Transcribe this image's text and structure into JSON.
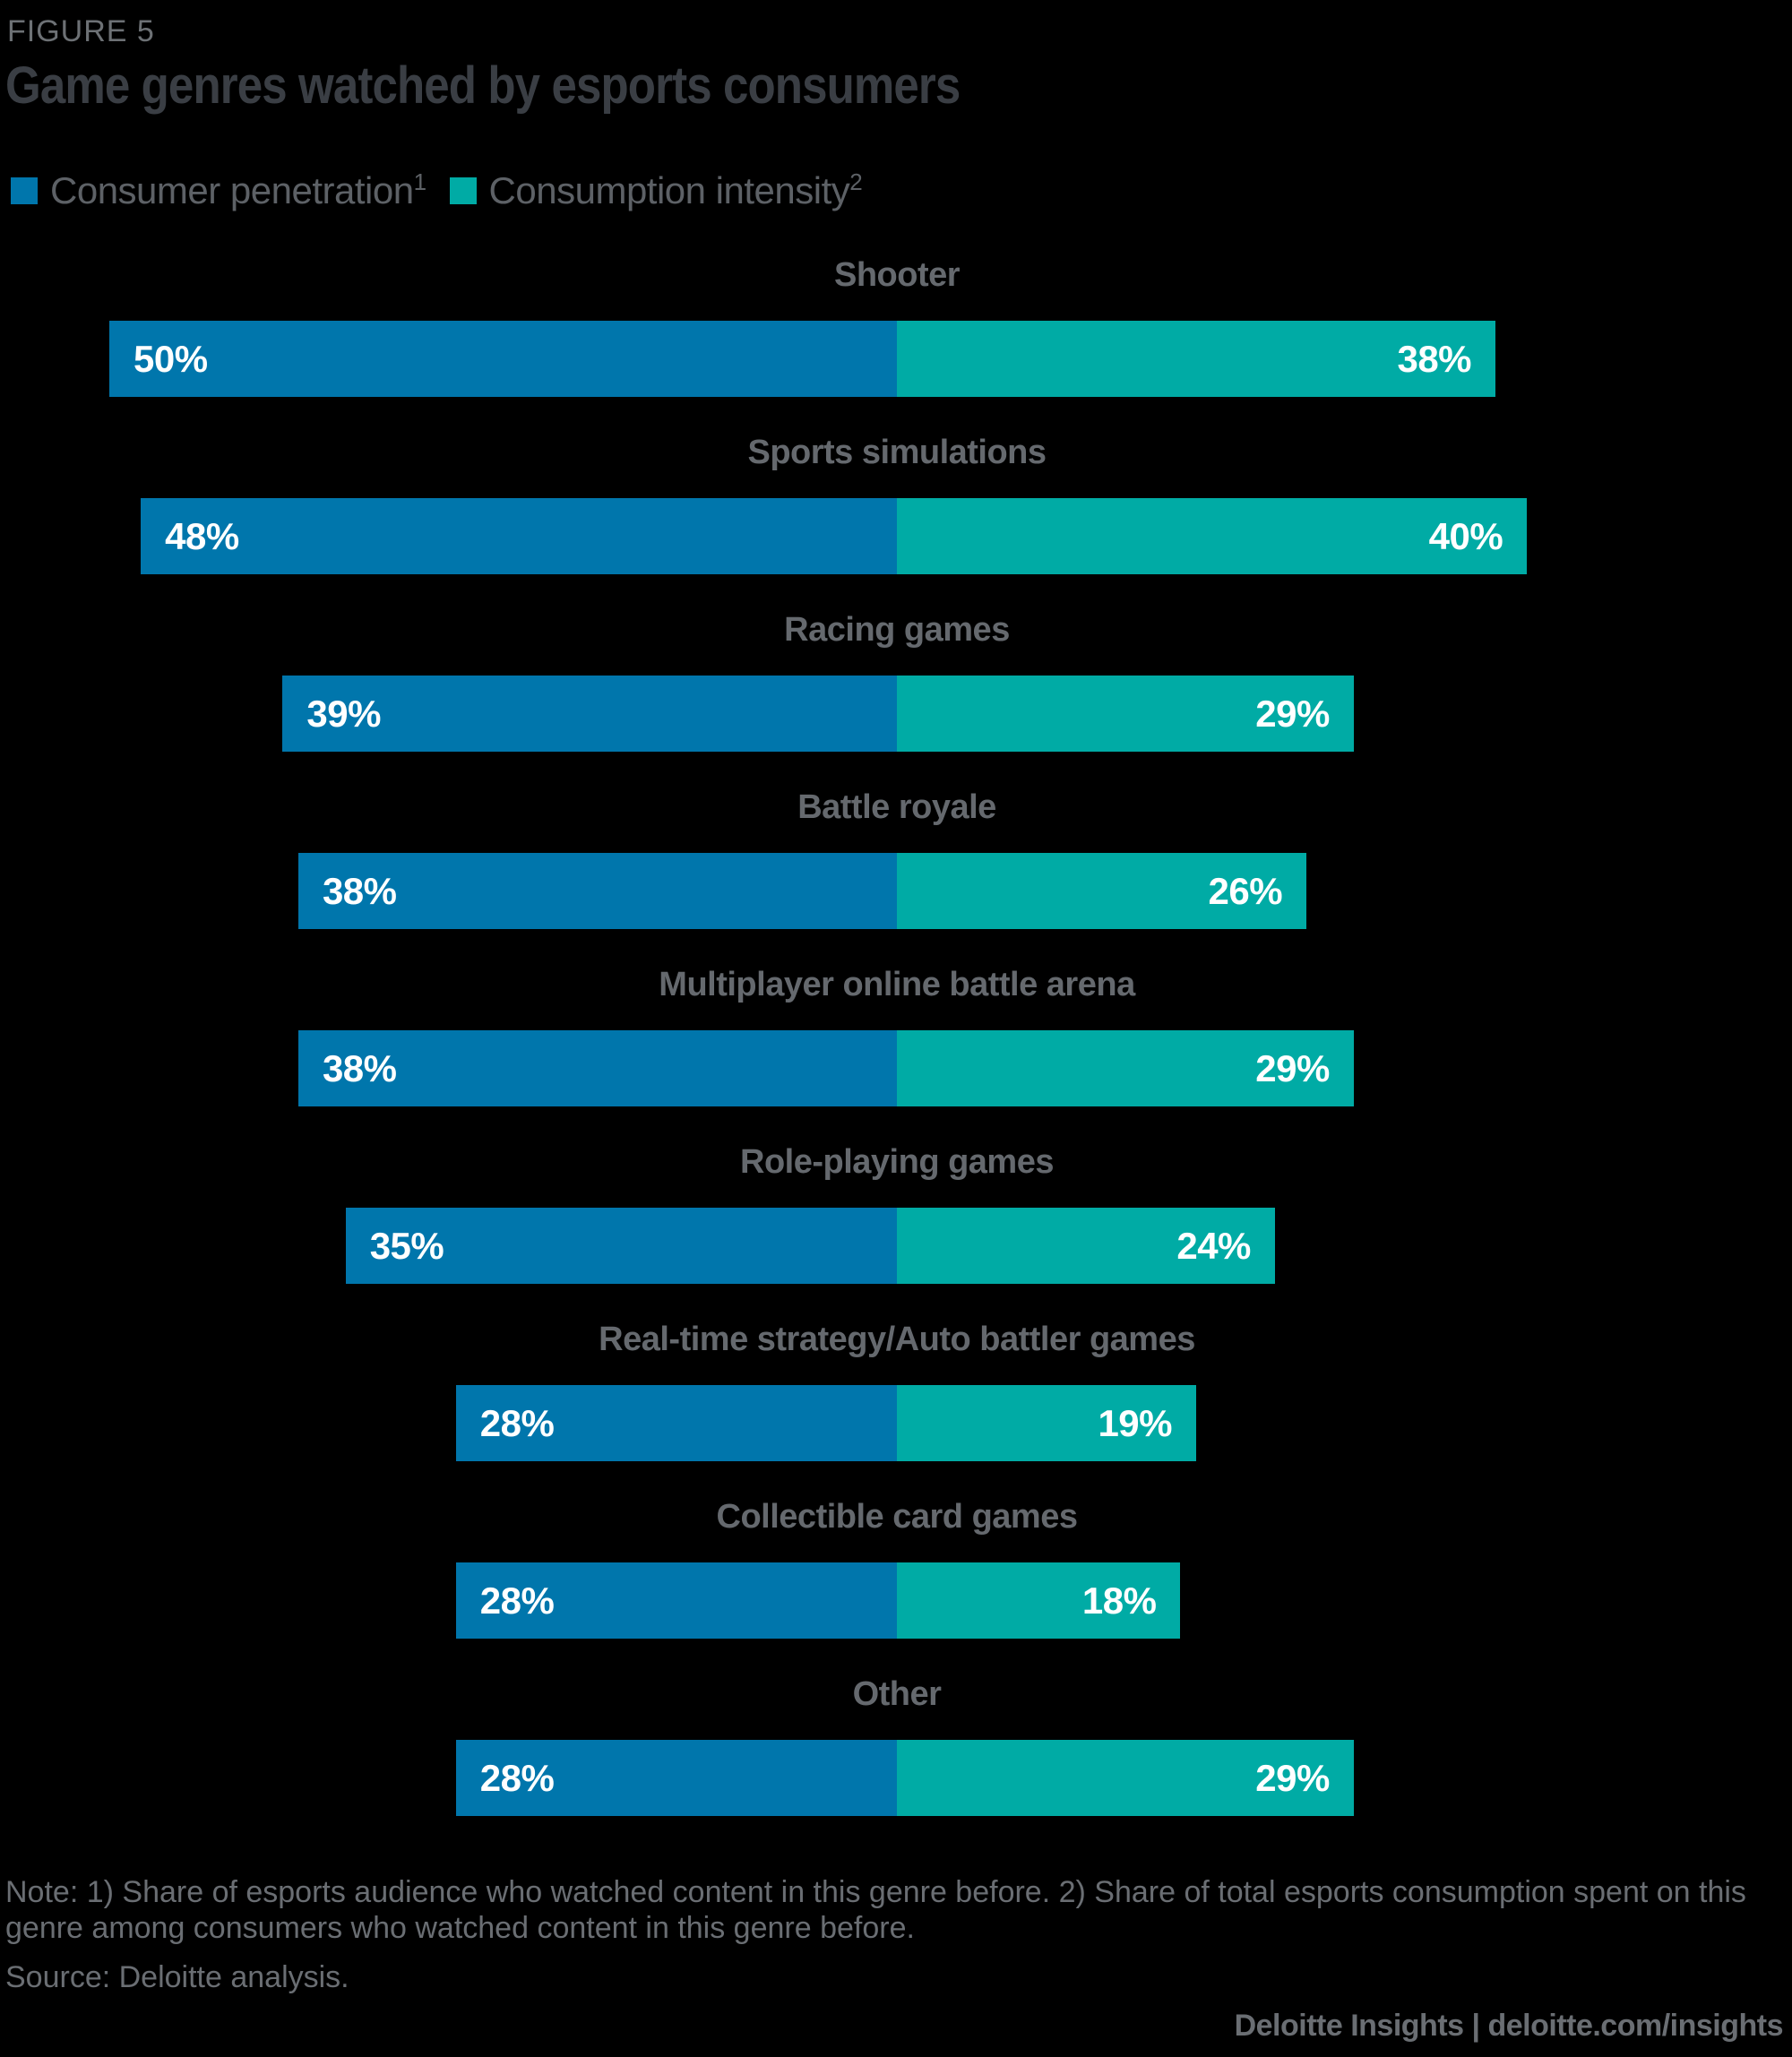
{
  "figure_label": "FIGURE 5",
  "title": "Game genres watched by esports consumers",
  "legend": {
    "items": [
      {
        "label": "Consumer penetration",
        "superscript": "1",
        "color": "#0076ac"
      },
      {
        "label": "Consumption intensity",
        "superscript": "2",
        "color": "#00aba5"
      }
    ]
  },
  "chart_data": {
    "type": "bar",
    "variant": "diverging-horizontal",
    "unit": "%",
    "value_labels": "inside-bar-ends",
    "categories": [
      "Shooter",
      "Sports simulations",
      "Racing games",
      "Battle royale",
      "Multiplayer online battle arena",
      "Role-playing games",
      "Real-time strategy/Auto battler games",
      "Collectible card games",
      "Other"
    ],
    "series": [
      {
        "name": "Consumer penetration",
        "side": "left",
        "color": "#0076ac",
        "values": [
          50,
          48,
          39,
          38,
          38,
          35,
          28,
          28,
          28
        ]
      },
      {
        "name": "Consumption intensity",
        "side": "right",
        "color": "#00aba5",
        "values": [
          38,
          40,
          29,
          26,
          29,
          24,
          19,
          18,
          29
        ]
      }
    ],
    "axis": {
      "center_value": 0,
      "max_left": 50,
      "max_right": 40,
      "grid": false,
      "ticks_visible": false
    }
  },
  "footer": {
    "note": "Note: 1) Share of esports audience who watched content in this genre before. 2) Share of total esports consumption spent on this genre among consumers who watched content in this genre before.",
    "source": "Source: Deloitte analysis.",
    "branding": "Deloitte Insights | deloitte.com/insights"
  },
  "colors": {
    "background": "#000000",
    "penetration_bar": "#0076ac",
    "intensity_bar": "#00aba5",
    "title_text": "#3a3e44",
    "genre_label_text": "#65696e",
    "note_text": "#6a6e73",
    "bar_value_text": "#ffffff"
  }
}
